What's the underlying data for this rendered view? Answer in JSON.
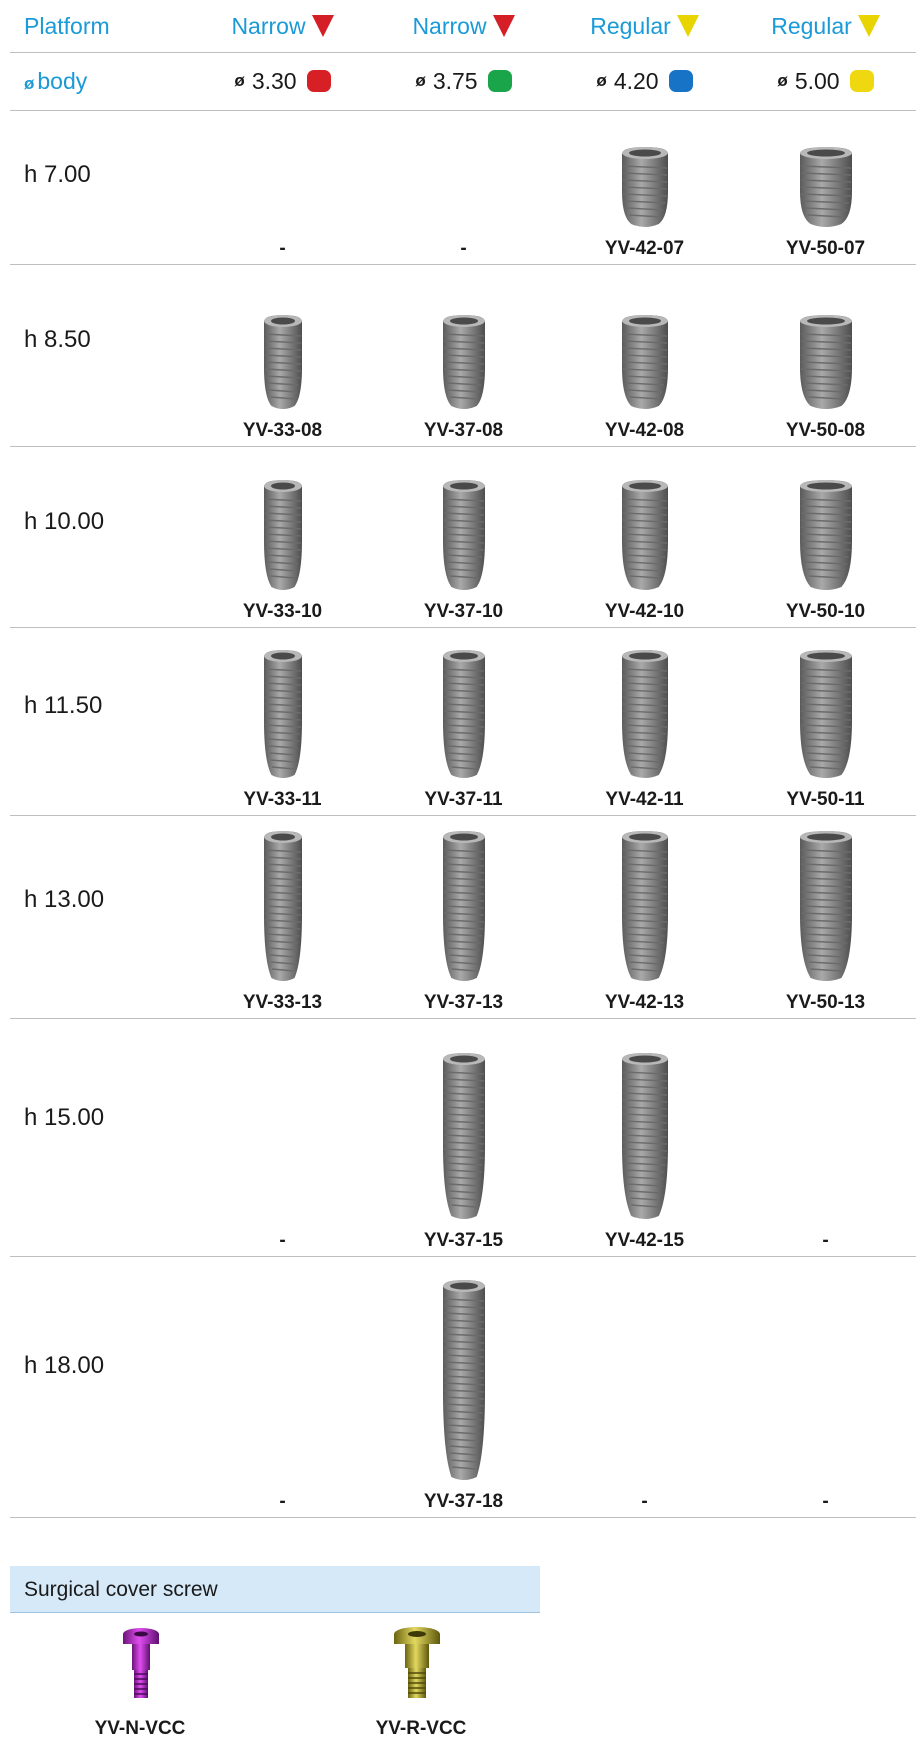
{
  "header": {
    "platform_label": "Platform",
    "body_label": "body",
    "diameter_symbol": "ø",
    "columns": [
      {
        "platform": "Narrow",
        "marker_color": "#d41f26",
        "diameter": "3.30",
        "chip_color": "#d71f26"
      },
      {
        "platform": "Narrow",
        "marker_color": "#d41f26",
        "diameter": "3.75",
        "chip_color": "#1aa54a"
      },
      {
        "platform": "Regular",
        "marker_color": "#e8d400",
        "diameter": "4.20",
        "chip_color": "#1673c5"
      },
      {
        "platform": "Regular",
        "marker_color": "#e8d400",
        "diameter": "5.00",
        "chip_color": "#efd80f"
      }
    ]
  },
  "rows": [
    {
      "height": "h 7.00",
      "codes": [
        "-",
        "-",
        "YV-42-07",
        "YV-50-07"
      ]
    },
    {
      "height": "h 8.50",
      "codes": [
        "YV-33-08",
        "YV-37-08",
        "YV-42-08",
        "YV-50-08"
      ]
    },
    {
      "height": "h 10.00",
      "codes": [
        "YV-33-10",
        "YV-37-10",
        "YV-42-10",
        "YV-50-10"
      ]
    },
    {
      "height": "h 11.50",
      "codes": [
        "YV-33-11",
        "YV-37-11",
        "YV-42-11",
        "YV-50-11"
      ]
    },
    {
      "height": "h 13.00",
      "codes": [
        "YV-33-13",
        "YV-37-13",
        "YV-42-13",
        "YV-50-13"
      ]
    },
    {
      "height": "h 15.00",
      "codes": [
        "-",
        "YV-37-15",
        "YV-42-15",
        "-"
      ]
    },
    {
      "height": "h 18.00",
      "codes": [
        "-",
        "YV-37-18",
        "-",
        "-"
      ]
    }
  ],
  "cover_screw": {
    "title": "Surgical cover screw",
    "items": [
      {
        "code": "YV-N-VCC",
        "color": "#b52fc4"
      },
      {
        "code": "YV-R-VCC",
        "color": "#b8ae2e"
      }
    ]
  }
}
